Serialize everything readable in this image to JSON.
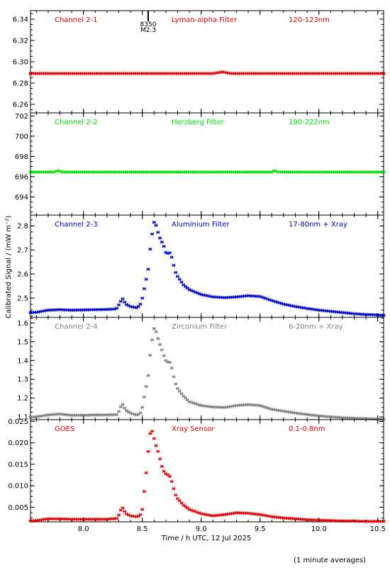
{
  "figure": {
    "ylabel": "Calibrated Signal / (mW m⁻²)",
    "xlabel": "Time / h UTC, 12 Jul 2025",
    "footnote": "(1 minute averages)",
    "flare_marker": {
      "id": "8350",
      "class": "M2.3",
      "time": 8.55
    },
    "xlim": [
      7.55,
      10.55
    ],
    "xticks": [
      8.0,
      8.5,
      9.0,
      9.5,
      10.0,
      10.5
    ],
    "xtick_labels": [
      "8.0",
      "8.5",
      "9.0",
      "9.5",
      "10.0",
      "10.5"
    ]
  },
  "chart_data": [
    {
      "type": "scatter",
      "channel": "Channel 2-1",
      "filter": "Lyman-alpha Filter",
      "band": "120-123nm",
      "color": "#e00000",
      "ylim": [
        6.252,
        6.348
      ],
      "yticks": [
        6.26,
        6.28,
        6.3,
        6.32,
        6.34
      ],
      "ytick_labels": [
        "6.26",
        "6.28",
        "6.30",
        "6.32",
        "6.34"
      ],
      "points": [
        [
          7.55,
          6.289
        ],
        [
          9.1,
          6.289
        ],
        [
          9.18,
          6.2905
        ],
        [
          9.25,
          6.289
        ],
        [
          10.55,
          6.289
        ]
      ]
    },
    {
      "type": "scatter",
      "channel": "Channel 2-2",
      "filter": "Herzberg Filter",
      "band": "190-222nm",
      "color": "#00e000",
      "ylim": [
        692.2,
        702.3
      ],
      "yticks": [
        694,
        696,
        698,
        700,
        702
      ],
      "ytick_labels": [
        "694",
        "696",
        "698",
        "700",
        "702"
      ],
      "points": [
        [
          7.55,
          696.45
        ],
        [
          7.75,
          696.45
        ],
        [
          7.78,
          696.6
        ],
        [
          7.82,
          696.45
        ],
        [
          9.6,
          696.45
        ],
        [
          9.62,
          696.6
        ],
        [
          9.66,
          696.45
        ],
        [
          10.55,
          696.45
        ]
      ]
    },
    {
      "type": "scatter",
      "channel": "Channel 2-3",
      "filter": "Aluminium Filter",
      "band": "17-80nm + Xray",
      "color": "#0000cc",
      "ylim": [
        2.42,
        2.845
      ],
      "yticks": [
        2.5,
        2.6,
        2.7,
        2.8
      ],
      "ytick_labels": [
        "2.5",
        "2.6",
        "2.7",
        "2.8"
      ],
      "points": [
        [
          7.55,
          2.44
        ],
        [
          7.6,
          2.441
        ],
        [
          7.7,
          2.45
        ],
        [
          7.8,
          2.452
        ],
        [
          7.9,
          2.45
        ],
        [
          8.0,
          2.451
        ],
        [
          8.1,
          2.452
        ],
        [
          8.2,
          2.453
        ],
        [
          8.28,
          2.455
        ],
        [
          8.31,
          2.48
        ],
        [
          8.33,
          2.5
        ],
        [
          8.36,
          2.475
        ],
        [
          8.4,
          2.465
        ],
        [
          8.45,
          2.46
        ],
        [
          8.48,
          2.47
        ],
        [
          8.5,
          2.5
        ],
        [
          8.53,
          2.57
        ],
        [
          8.55,
          2.62
        ],
        [
          8.57,
          2.72
        ],
        [
          8.59,
          2.79
        ],
        [
          8.6,
          2.815
        ],
        [
          8.62,
          2.8
        ],
        [
          8.64,
          2.76
        ],
        [
          8.66,
          2.74
        ],
        [
          8.68,
          2.72
        ],
        [
          8.7,
          2.69
        ],
        [
          8.72,
          2.685
        ],
        [
          8.74,
          2.69
        ],
        [
          8.76,
          2.65
        ],
        [
          8.78,
          2.61
        ],
        [
          8.8,
          2.59
        ],
        [
          8.85,
          2.555
        ],
        [
          8.9,
          2.535
        ],
        [
          9.0,
          2.515
        ],
        [
          9.1,
          2.505
        ],
        [
          9.2,
          2.502
        ],
        [
          9.3,
          2.505
        ],
        [
          9.4,
          2.51
        ],
        [
          9.5,
          2.507
        ],
        [
          9.6,
          2.49
        ],
        [
          9.7,
          2.475
        ],
        [
          9.8,
          2.465
        ],
        [
          9.9,
          2.457
        ],
        [
          10.0,
          2.45
        ],
        [
          10.1,
          2.445
        ],
        [
          10.2,
          2.44
        ],
        [
          10.3,
          2.435
        ],
        [
          10.4,
          2.432
        ],
        [
          10.5,
          2.43
        ],
        [
          10.55,
          2.428
        ]
      ]
    },
    {
      "type": "scatter",
      "channel": "Channel 2-4",
      "filter": "Zirconium Filter",
      "band": "6-20nm + Xray",
      "color": "#808080",
      "ylim": [
        1.085,
        1.63
      ],
      "yticks": [
        1.1,
        1.2,
        1.3,
        1.4,
        1.5,
        1.6
      ],
      "ytick_labels": [
        "1.1",
        "1.2",
        "1.3",
        "1.4",
        "1.5",
        "1.6"
      ],
      "points": [
        [
          7.55,
          1.098
        ],
        [
          7.6,
          1.1
        ],
        [
          7.7,
          1.11
        ],
        [
          7.8,
          1.115
        ],
        [
          7.9,
          1.108
        ],
        [
          8.0,
          1.108
        ],
        [
          8.1,
          1.11
        ],
        [
          8.2,
          1.11
        ],
        [
          8.29,
          1.112
        ],
        [
          8.31,
          1.145
        ],
        [
          8.33,
          1.17
        ],
        [
          8.36,
          1.135
        ],
        [
          8.4,
          1.12
        ],
        [
          8.45,
          1.11
        ],
        [
          8.48,
          1.115
        ],
        [
          8.5,
          1.15
        ],
        [
          8.53,
          1.25
        ],
        [
          8.55,
          1.32
        ],
        [
          8.57,
          1.45
        ],
        [
          8.59,
          1.54
        ],
        [
          8.6,
          1.57
        ],
        [
          8.62,
          1.55
        ],
        [
          8.64,
          1.5
        ],
        [
          8.66,
          1.47
        ],
        [
          8.68,
          1.43
        ],
        [
          8.7,
          1.4
        ],
        [
          8.72,
          1.39
        ],
        [
          8.74,
          1.39
        ],
        [
          8.76,
          1.33
        ],
        [
          8.78,
          1.28
        ],
        [
          8.8,
          1.25
        ],
        [
          8.85,
          1.21
        ],
        [
          8.9,
          1.18
        ],
        [
          9.0,
          1.16
        ],
        [
          9.1,
          1.152
        ],
        [
          9.2,
          1.15
        ],
        [
          9.3,
          1.16
        ],
        [
          9.4,
          1.165
        ],
        [
          9.5,
          1.16
        ],
        [
          9.6,
          1.14
        ],
        [
          9.7,
          1.13
        ],
        [
          9.8,
          1.12
        ],
        [
          9.9,
          1.112
        ],
        [
          10.0,
          1.105
        ],
        [
          10.1,
          1.1
        ],
        [
          10.2,
          1.095
        ],
        [
          10.3,
          1.092
        ],
        [
          10.4,
          1.09
        ],
        [
          10.5,
          1.088
        ],
        [
          10.55,
          1.087
        ]
      ]
    },
    {
      "type": "scatter",
      "channel": "GOES",
      "filter": "Xray Sensor",
      "band": "0.1-0.8nm",
      "color": "#e00000",
      "ylim": [
        0.0016,
        0.0254
      ],
      "yticks": [
        0.005,
        0.01,
        0.015,
        0.02,
        0.025
      ],
      "ytick_labels": [
        "0.005",
        "0.010",
        "0.015",
        "0.020",
        "0.025"
      ],
      "points": [
        [
          7.55,
          0.0018
        ],
        [
          7.6,
          0.0019
        ],
        [
          7.7,
          0.0023
        ],
        [
          7.8,
          0.0023
        ],
        [
          7.9,
          0.0022
        ],
        [
          8.0,
          0.0022
        ],
        [
          8.1,
          0.0022
        ],
        [
          8.2,
          0.0022
        ],
        [
          8.29,
          0.0024
        ],
        [
          8.31,
          0.004
        ],
        [
          8.33,
          0.005
        ],
        [
          8.36,
          0.0035
        ],
        [
          8.4,
          0.003
        ],
        [
          8.45,
          0.0028
        ],
        [
          8.48,
          0.003
        ],
        [
          8.5,
          0.0045
        ],
        [
          8.53,
          0.012
        ],
        [
          8.55,
          0.018
        ],
        [
          8.57,
          0.023
        ],
        [
          8.59,
          0.0225
        ],
        [
          8.6,
          0.021
        ],
        [
          8.62,
          0.019
        ],
        [
          8.64,
          0.0175
        ],
        [
          8.66,
          0.015
        ],
        [
          8.68,
          0.0135
        ],
        [
          8.7,
          0.0128
        ],
        [
          8.72,
          0.0125
        ],
        [
          8.74,
          0.012
        ],
        [
          8.76,
          0.01
        ],
        [
          8.78,
          0.008
        ],
        [
          8.8,
          0.007
        ],
        [
          8.85,
          0.0055
        ],
        [
          8.9,
          0.0045
        ],
        [
          9.0,
          0.0035
        ],
        [
          9.1,
          0.003
        ],
        [
          9.2,
          0.0033
        ],
        [
          9.3,
          0.0037
        ],
        [
          9.4,
          0.0036
        ],
        [
          9.5,
          0.0033
        ],
        [
          9.6,
          0.0028
        ],
        [
          9.7,
          0.0025
        ],
        [
          9.8,
          0.0023
        ],
        [
          9.9,
          0.0021
        ],
        [
          10.0,
          0.002
        ],
        [
          10.1,
          0.0019
        ],
        [
          10.2,
          0.0018
        ],
        [
          10.3,
          0.0018
        ],
        [
          10.4,
          0.0017
        ],
        [
          10.5,
          0.0017
        ],
        [
          10.55,
          0.0017
        ]
      ]
    }
  ]
}
